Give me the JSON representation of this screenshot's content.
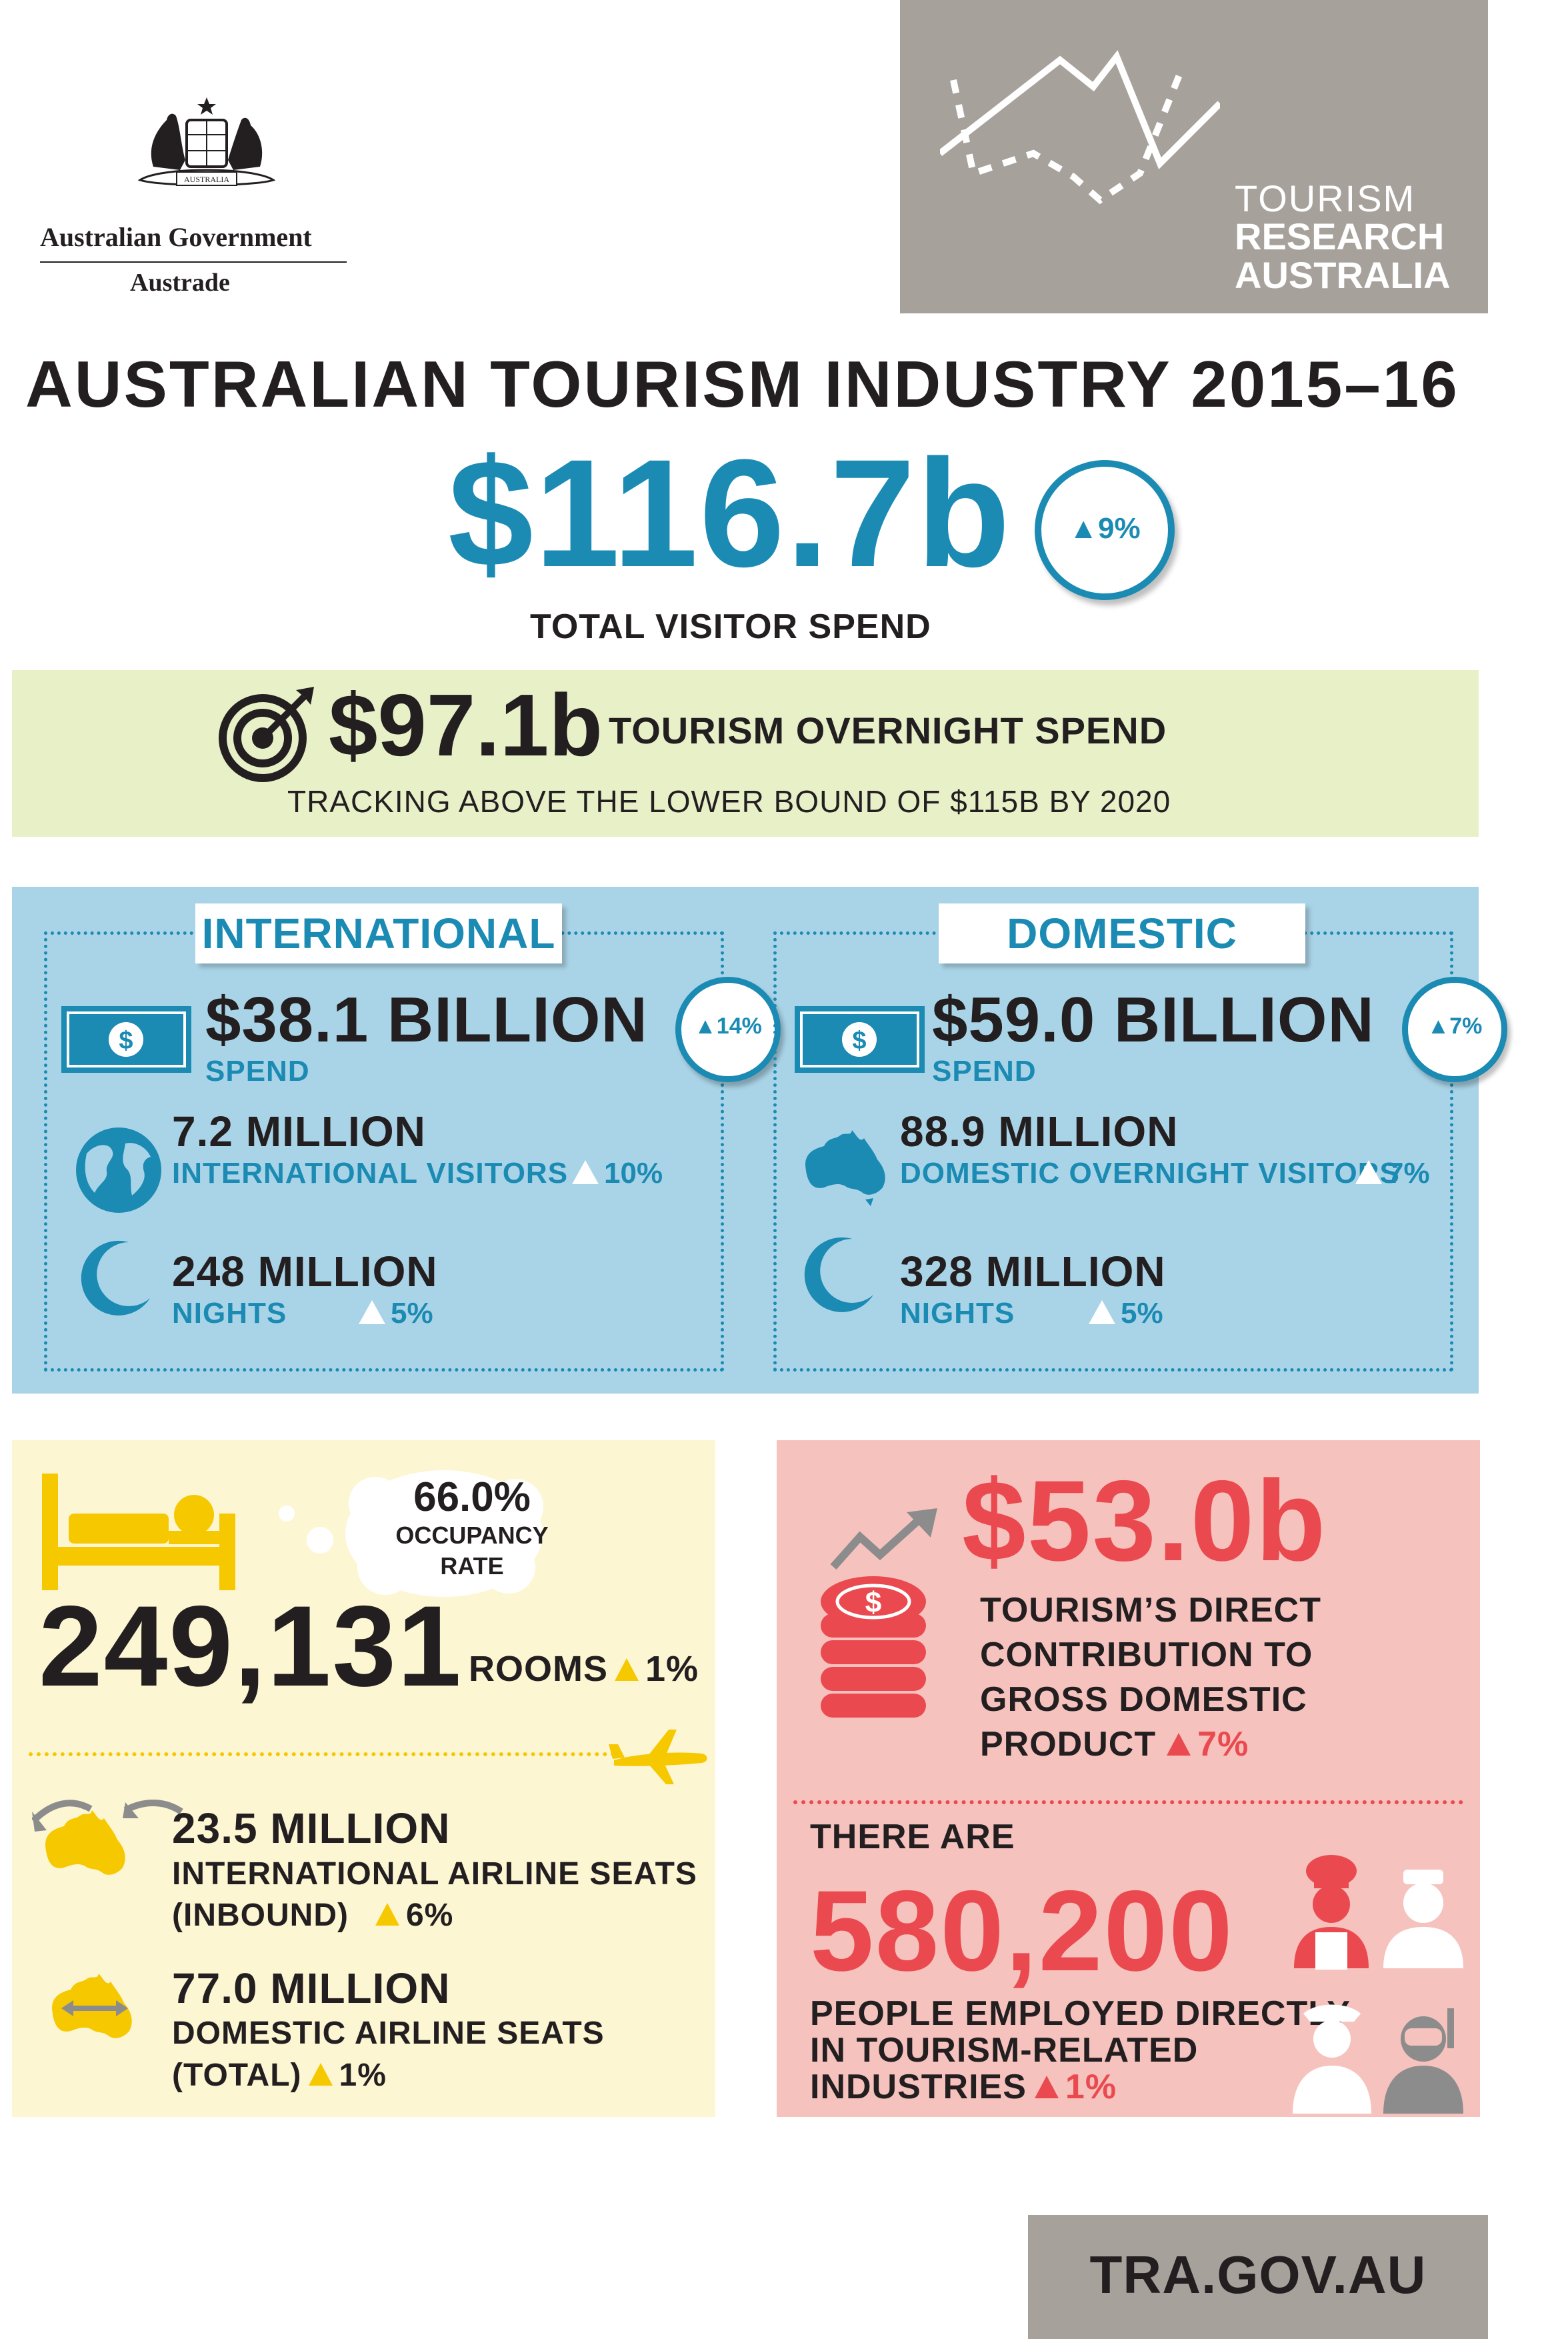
{
  "header": {
    "gov_name": "Australian Government",
    "gov_dept": "Austrade",
    "crest_text": "AUSTRALIA",
    "tra": [
      "TOURISM",
      "RESEARCH",
      "AUSTRALIA"
    ]
  },
  "title": "AUSTRALIAN TOURISM INDUSTRY 2015–16",
  "total": {
    "value": "$116.7b",
    "change": "9%",
    "label": "TOTAL VISITOR SPEND"
  },
  "overnight": {
    "value": "$97.1b",
    "label": "TOURISM OVERNIGHT SPEND",
    "sub": "TRACKING ABOVE THE LOWER BOUND OF $115B BY 2020"
  },
  "international": {
    "title": "INTERNATIONAL",
    "spend_value": "$38.1 BILLION",
    "spend_label": "SPEND",
    "spend_change": "14%",
    "visitors_value": "7.2 MILLION",
    "visitors_label": "INTERNATIONAL VISITORS",
    "visitors_change": "10%",
    "nights_value": "248 MILLION",
    "nights_label": "NIGHTS",
    "nights_change": "5%"
  },
  "domestic": {
    "title": "DOMESTIC",
    "spend_value": "$59.0 BILLION",
    "spend_label": "SPEND",
    "spend_change": "7%",
    "visitors_value": "88.9 MILLION",
    "visitors_label": "DOMESTIC OVERNIGHT VISITORS",
    "visitors_change": "7%",
    "nights_value": "328 MILLION",
    "nights_label": "NIGHTS",
    "nights_change": "5%"
  },
  "accommodation": {
    "occupancy_value": "66.0%",
    "occupancy_label_1": "OCCUPANCY",
    "occupancy_label_2": "RATE",
    "rooms_value": "249,131",
    "rooms_label": "ROOMS",
    "rooms_change": "1%"
  },
  "airline": {
    "intl_value": "23.5 MILLION",
    "intl_label_1": "INTERNATIONAL AIRLINE SEATS",
    "intl_label_2": "(INBOUND)",
    "intl_change": "6%",
    "dom_value": "77.0 MILLION",
    "dom_label_1": "DOMESTIC AIRLINE SEATS",
    "dom_label_2": "(TOTAL)",
    "dom_change": "1%"
  },
  "gdp": {
    "value": "$53.0b",
    "label_1": "TOURISM’S DIRECT",
    "label_2": "CONTRIBUTION TO",
    "label_3": "GROSS DOMESTIC",
    "label_4": "PRODUCT",
    "change": "7%"
  },
  "employment": {
    "intro": "THERE ARE",
    "value": "580,200",
    "label_1": "PEOPLE EMPLOYED DIRECTLY",
    "label_2": "IN TOURISM-RELATED",
    "label_3": "INDUSTRIES",
    "change": "1%"
  },
  "footer": {
    "url": "TRA.GOV.AU"
  },
  "colors": {
    "blue": "#1b8bb4",
    "red": "#ea4a4f",
    "yellow": "#f6c800",
    "grey": "#a7a19c"
  }
}
